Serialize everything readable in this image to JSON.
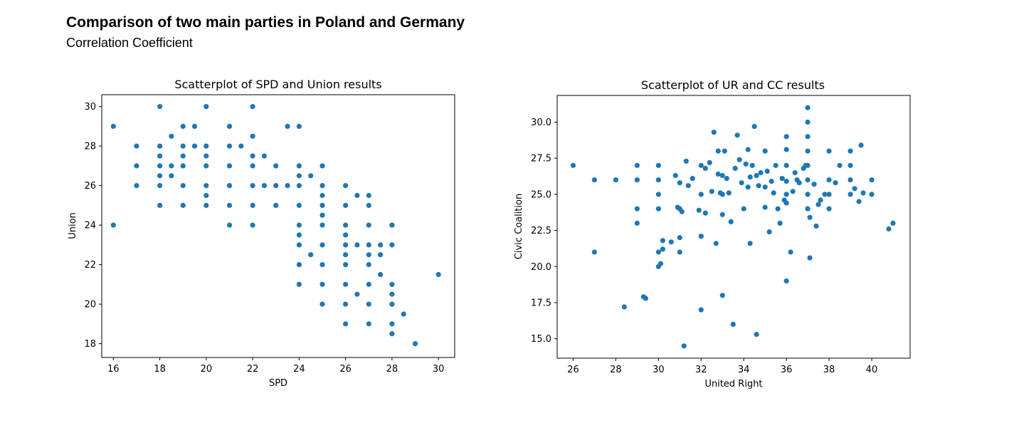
{
  "header": {
    "title": "Comparison of two main parties in Poland and Germany",
    "subtitle": "Correlation Coefficient"
  },
  "chart_data": [
    {
      "type": "scatter",
      "title": "Scatterplot of SPD and Union results",
      "xlabel": "SPD",
      "ylabel": "Union",
      "xlim": [
        15.5,
        30.7
      ],
      "ylim": [
        17.3,
        30.6
      ],
      "xticks": [
        16,
        18,
        20,
        22,
        24,
        26,
        28,
        30
      ],
      "yticks": [
        18,
        20,
        22,
        24,
        26,
        28,
        30
      ],
      "tick_format": 0,
      "color": "#1f77b4",
      "points": [
        [
          16,
          29
        ],
        [
          16,
          24
        ],
        [
          17,
          28
        ],
        [
          17,
          27
        ],
        [
          17,
          26
        ],
        [
          18,
          30
        ],
        [
          18,
          28
        ],
        [
          18,
          27.5
        ],
        [
          18,
          27
        ],
        [
          18,
          26.5
        ],
        [
          18,
          26
        ],
        [
          18,
          25
        ],
        [
          18.5,
          28.5
        ],
        [
          18.5,
          27
        ],
        [
          18.5,
          26.5
        ],
        [
          19,
          29
        ],
        [
          19,
          28
        ],
        [
          19,
          27.5
        ],
        [
          19,
          27
        ],
        [
          19,
          26
        ],
        [
          19,
          25
        ],
        [
          19.5,
          29
        ],
        [
          19.5,
          28
        ],
        [
          20,
          30
        ],
        [
          20,
          28
        ],
        [
          20,
          27.5
        ],
        [
          20,
          27
        ],
        [
          20,
          26
        ],
        [
          20,
          25.5
        ],
        [
          20,
          25
        ],
        [
          21,
          29
        ],
        [
          21,
          28
        ],
        [
          21,
          27
        ],
        [
          21,
          26
        ],
        [
          21,
          25
        ],
        [
          21,
          24
        ],
        [
          21.5,
          28
        ],
        [
          22,
          30
        ],
        [
          22,
          28.5
        ],
        [
          22,
          27.5
        ],
        [
          22,
          27
        ],
        [
          22,
          26
        ],
        [
          22,
          25
        ],
        [
          22,
          24
        ],
        [
          22.5,
          27.5
        ],
        [
          22.5,
          26
        ],
        [
          23,
          27
        ],
        [
          23,
          26
        ],
        [
          23,
          25
        ],
        [
          23.5,
          29
        ],
        [
          23.5,
          26
        ],
        [
          24,
          29
        ],
        [
          24,
          27
        ],
        [
          24,
          26.5
        ],
        [
          24,
          26
        ],
        [
          24,
          25
        ],
        [
          24,
          24
        ],
        [
          24,
          23.5
        ],
        [
          24,
          23
        ],
        [
          24,
          22
        ],
        [
          24,
          21
        ],
        [
          24.5,
          26.5
        ],
        [
          24.5,
          22.5
        ],
        [
          25,
          27
        ],
        [
          25,
          26
        ],
        [
          25,
          25.5
        ],
        [
          25,
          25
        ],
        [
          25,
          24.5
        ],
        [
          25,
          24
        ],
        [
          25,
          23
        ],
        [
          25,
          22
        ],
        [
          25,
          21
        ],
        [
          25,
          20
        ],
        [
          26,
          26
        ],
        [
          26,
          25
        ],
        [
          26,
          24
        ],
        [
          26,
          23.5
        ],
        [
          26,
          23
        ],
        [
          26,
          22.5
        ],
        [
          26,
          22
        ],
        [
          26,
          21
        ],
        [
          26,
          20
        ],
        [
          26,
          19
        ],
        [
          26.5,
          25.5
        ],
        [
          26.5,
          23
        ],
        [
          26.5,
          20.5
        ],
        [
          27,
          25.5
        ],
        [
          27,
          25
        ],
        [
          27,
          24
        ],
        [
          27,
          23
        ],
        [
          27,
          22.5
        ],
        [
          27,
          22
        ],
        [
          27,
          21
        ],
        [
          27,
          20
        ],
        [
          27,
          19
        ],
        [
          27.5,
          23
        ],
        [
          27.5,
          22.5
        ],
        [
          27.5,
          21.5
        ],
        [
          28,
          24
        ],
        [
          28,
          23
        ],
        [
          28,
          21
        ],
        [
          28,
          20.5
        ],
        [
          28,
          20
        ],
        [
          28,
          19
        ],
        [
          28,
          18.5
        ],
        [
          28.5,
          19.5
        ],
        [
          29,
          18
        ],
        [
          30,
          21.5
        ]
      ]
    },
    {
      "type": "scatter",
      "title": "Scatterplot of UR and CC results",
      "xlabel": "United Right",
      "ylabel": "Civic Coalition",
      "xlim": [
        25.25,
        41.8
      ],
      "ylim": [
        13.65,
        31.85
      ],
      "xticks": [
        26,
        28,
        30,
        32,
        34,
        36,
        38,
        40
      ],
      "yticks": [
        15.0,
        17.5,
        20.0,
        22.5,
        25.0,
        27.5,
        30.0
      ],
      "tick_format": 1,
      "color": "#1f77b4",
      "points": [
        [
          26,
          27
        ],
        [
          27,
          26
        ],
        [
          27,
          21
        ],
        [
          28,
          26
        ],
        [
          28.4,
          17.2
        ],
        [
          29,
          27
        ],
        [
          29,
          26
        ],
        [
          29,
          24
        ],
        [
          29,
          23
        ],
        [
          29.3,
          17.9
        ],
        [
          29.4,
          17.8
        ],
        [
          30,
          27
        ],
        [
          30,
          26
        ],
        [
          30,
          25
        ],
        [
          30,
          24
        ],
        [
          30,
          21
        ],
        [
          30,
          20
        ],
        [
          30.1,
          20.2
        ],
        [
          30.2,
          21.2
        ],
        [
          30.2,
          21.8
        ],
        [
          30.6,
          21.7
        ],
        [
          30.8,
          26.3
        ],
        [
          30.9,
          24.1
        ],
        [
          31,
          25.8
        ],
        [
          31,
          24
        ],
        [
          31,
          22
        ],
        [
          31,
          21
        ],
        [
          31.1,
          23.8
        ],
        [
          31.2,
          14.5
        ],
        [
          31.3,
          27.3
        ],
        [
          31.4,
          25.6
        ],
        [
          31.6,
          26.1
        ],
        [
          31.9,
          23.9
        ],
        [
          32,
          27
        ],
        [
          32,
          25
        ],
        [
          32,
          22.1
        ],
        [
          32,
          17
        ],
        [
          32.2,
          26.8
        ],
        [
          32.2,
          23.7
        ],
        [
          32.4,
          27.2
        ],
        [
          32.5,
          25.2
        ],
        [
          32.6,
          29.3
        ],
        [
          32.7,
          21.6
        ],
        [
          32.8,
          28
        ],
        [
          32.8,
          26.4
        ],
        [
          32.9,
          25.1
        ],
        [
          33,
          26.3
        ],
        [
          33,
          25
        ],
        [
          33,
          23.6
        ],
        [
          33,
          18
        ],
        [
          33.1,
          28
        ],
        [
          33.2,
          26.1
        ],
        [
          33.3,
          25.1
        ],
        [
          33.4,
          23.1
        ],
        [
          33.5,
          16
        ],
        [
          33.6,
          26.8
        ],
        [
          33.7,
          29.1
        ],
        [
          33.8,
          27.4
        ],
        [
          33.9,
          25.8
        ],
        [
          34,
          24
        ],
        [
          34.1,
          27.1
        ],
        [
          34.2,
          28.1
        ],
        [
          34.2,
          25.5
        ],
        [
          34.3,
          26.2
        ],
        [
          34.3,
          21.6
        ],
        [
          34.4,
          27
        ],
        [
          34.5,
          29.7
        ],
        [
          34.6,
          26.3
        ],
        [
          34.6,
          15.3
        ],
        [
          34.7,
          25.6
        ],
        [
          34.8,
          26.5
        ],
        [
          35,
          28
        ],
        [
          35,
          25.5
        ],
        [
          35,
          24.1
        ],
        [
          35.1,
          26.6
        ],
        [
          35.2,
          22.4
        ],
        [
          35.3,
          25.9
        ],
        [
          35.4,
          25.1
        ],
        [
          35.5,
          27
        ],
        [
          35.6,
          24
        ],
        [
          35.7,
          23
        ],
        [
          35.8,
          26.1
        ],
        [
          35.9,
          24.6
        ],
        [
          36,
          29
        ],
        [
          36,
          28.1
        ],
        [
          36,
          27
        ],
        [
          36,
          25.9
        ],
        [
          36,
          25
        ],
        [
          36,
          24.4
        ],
        [
          36,
          19
        ],
        [
          36.2,
          21
        ],
        [
          36.3,
          25.2
        ],
        [
          36.4,
          26.5
        ],
        [
          36.5,
          26
        ],
        [
          36.6,
          25.8
        ],
        [
          36.8,
          26.8
        ],
        [
          36.9,
          27
        ],
        [
          37,
          31
        ],
        [
          37,
          30
        ],
        [
          37,
          29
        ],
        [
          37,
          28
        ],
        [
          37,
          27
        ],
        [
          37,
          26
        ],
        [
          37,
          25
        ],
        [
          37,
          24
        ],
        [
          37.1,
          23.4
        ],
        [
          37.1,
          20.6
        ],
        [
          37.3,
          25.7
        ],
        [
          37.4,
          22.8
        ],
        [
          37.5,
          24.3
        ],
        [
          37.6,
          24.6
        ],
        [
          37.8,
          25
        ],
        [
          38,
          28
        ],
        [
          38,
          26
        ],
        [
          38,
          25
        ],
        [
          38,
          24
        ],
        [
          38.3,
          25.8
        ],
        [
          38.5,
          27
        ],
        [
          39,
          28
        ],
        [
          39,
          27
        ],
        [
          39,
          26
        ],
        [
          39,
          25
        ],
        [
          39.2,
          25.4
        ],
        [
          39.4,
          24.5
        ],
        [
          39.5,
          28.4
        ],
        [
          39.6,
          25.1
        ],
        [
          40,
          26
        ],
        [
          40,
          25
        ],
        [
          40.8,
          22.6
        ],
        [
          41,
          23
        ]
      ]
    }
  ]
}
